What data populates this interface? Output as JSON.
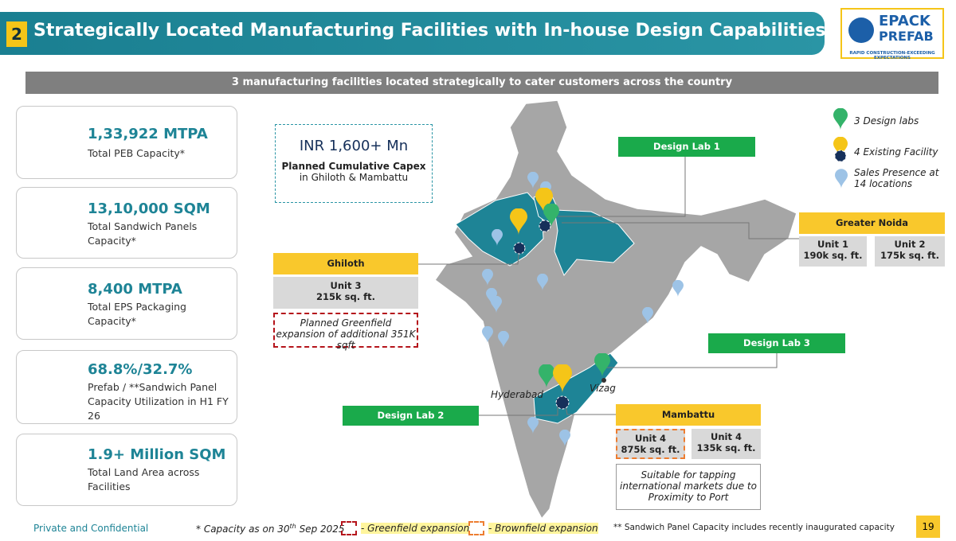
{
  "header": {
    "number": "2",
    "title": "Strategically Located Manufacturing Facilities with In-house Design Capabilities"
  },
  "logo": {
    "name": "EPACK",
    "sub": "PREFAB",
    "tagline": "RAPID CONSTRUCTION-EXCEEDING EXPECTATIONS"
  },
  "banner": "3 manufacturing facilities located strategically to cater customers across the country",
  "kpis": [
    {
      "value": "1,33,922 MTPA",
      "label": "Total PEB Capacity*"
    },
    {
      "value": "13,10,000 SQM",
      "label": "Total Sandwich Panels Capacity*"
    },
    {
      "value": "8,400 MTPA",
      "label": "Total EPS Packaging Capacity*"
    },
    {
      "value": "68.8%/32.7%",
      "label": "Prefab / **Sandwich Panel Capacity Utilization in H1 FY 26"
    },
    {
      "value": "1.9+ Million SQM",
      "label": "Total Land Area across Facilities"
    }
  ],
  "capex": {
    "value": "INR 1,600+ Mn",
    "label": "Planned Cumulative Capex",
    "sub": "in Ghiloth & Mambattu"
  },
  "legend": [
    "3 Design labs",
    "4 Existing Facility",
    "Sales Presence at 14 locations"
  ],
  "design_labs": [
    "Design Lab 1",
    "Design Lab 2",
    "Design Lab 3"
  ],
  "facilities": {
    "greater_noida": {
      "name": "Greater Noida",
      "units": [
        {
          "name": "Unit 1",
          "area": "190k sq. ft."
        },
        {
          "name": "Unit 2",
          "area": "175k sq. ft."
        }
      ]
    },
    "ghiloth": {
      "name": "Ghiloth",
      "units": [
        {
          "name": "Unit 3",
          "area": "215k sq. ft."
        }
      ],
      "note": "Planned Greenfield expansion of additional 351K sqft"
    },
    "mambattu": {
      "name": "Mambattu",
      "units": [
        {
          "name": "Unit 4",
          "area": "875k sq. ft."
        },
        {
          "name": "Unit 4",
          "area": "135k sq. ft."
        }
      ],
      "note": "Suitable for tapping international markets due to Proximity to Port"
    }
  },
  "cities": [
    "Hyderabad",
    "Vizag"
  ],
  "footer": {
    "confidential": "Private and Confidential",
    "capacity_note": [
      "* Capacity as on 30",
      "th",
      " Sep 2025"
    ],
    "greenfield": "- Greenfield expansion",
    "brownfield": "- Brownfield expansion",
    "sandwich_note": "** Sandwich Panel Capacity includes recently inaugurated capacity",
    "page": "19"
  }
}
